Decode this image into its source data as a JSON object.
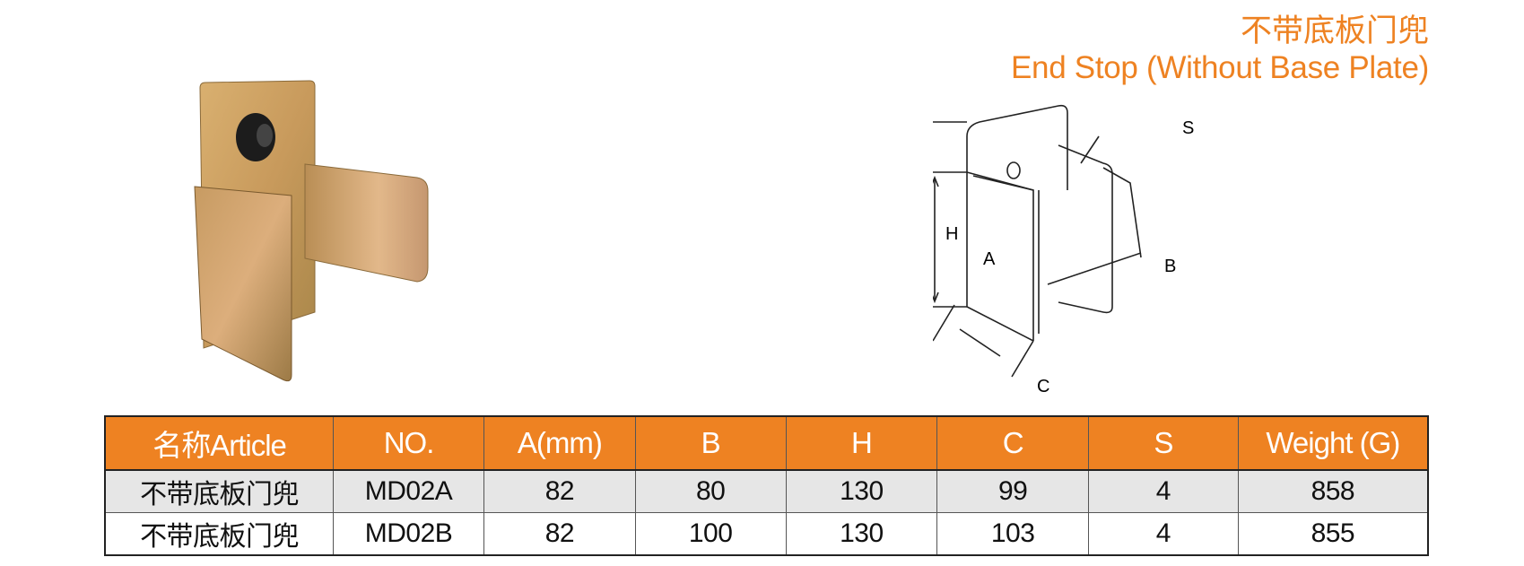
{
  "title": {
    "cn": "不带底板门兜",
    "en": "End Stop (Without Base Plate)"
  },
  "colors": {
    "accent": "#ee8222",
    "row_alt": "#e6e6e6"
  },
  "diagram": {
    "labels": {
      "h": "H",
      "a": "A",
      "b": "B",
      "c": "C",
      "s": "S"
    }
  },
  "table": {
    "headers": [
      "名称Article",
      "NO.",
      "A(mm)",
      "B",
      "H",
      "C",
      "S",
      "Weight (G)"
    ],
    "rows": [
      [
        "不带底板门兜",
        "MD02A",
        "82",
        "80",
        "130",
        "99",
        "4",
        "858"
      ],
      [
        "不带底板门兜",
        "MD02B",
        "82",
        "100",
        "130",
        "103",
        "4",
        "855"
      ]
    ]
  }
}
